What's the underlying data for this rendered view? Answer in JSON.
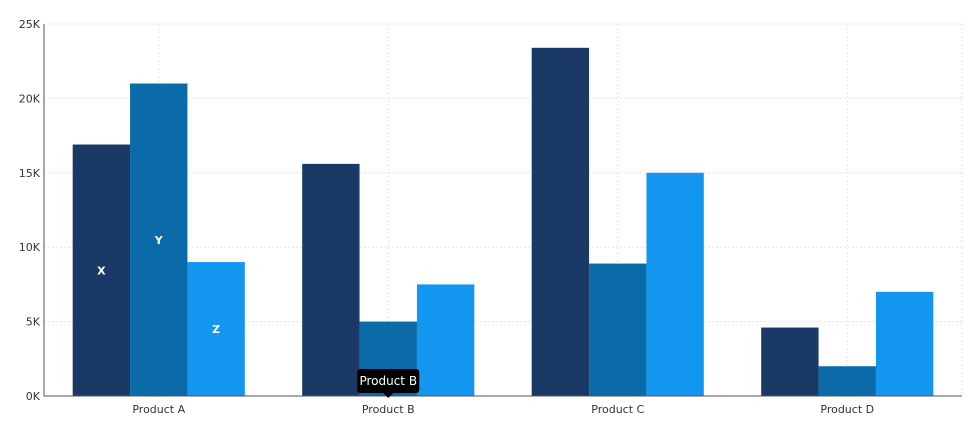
{
  "chart_data": {
    "type": "bar",
    "categories": [
      "Product A",
      "Product B",
      "Product C",
      "Product D"
    ],
    "series": [
      {
        "values": [
          16900,
          15600,
          23400,
          4600
        ],
        "color": "#1a3966",
        "label": "X"
      },
      {
        "values": [
          21000,
          5000,
          8900,
          2000
        ],
        "color": "#0b6aa8",
        "label": "Y"
      },
      {
        "values": [
          9000,
          7500,
          15000,
          7000
        ],
        "color": "#1396f0",
        "label": "Z"
      }
    ],
    "yticks": [
      "0K",
      "5K",
      "10K",
      "15K",
      "20K",
      "25K"
    ],
    "ylim": [
      0,
      25000
    ],
    "grid": true,
    "tooltip": {
      "text": "Product B",
      "category_index": 1
    }
  }
}
